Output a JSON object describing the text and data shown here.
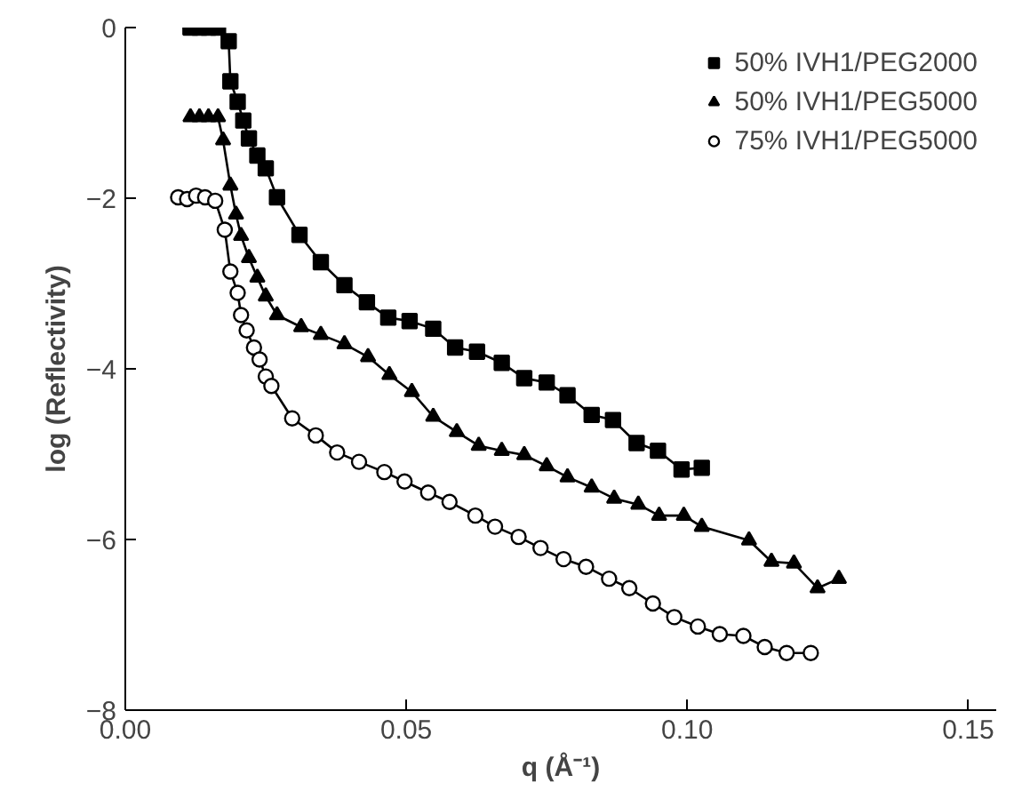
{
  "chart_data": {
    "type": "line",
    "xlabel": "q (Å⁻¹)",
    "ylabel": "log (Reflectivity)",
    "xlim": [
      0,
      0.155
    ],
    "ylim": [
      -8,
      0
    ],
    "xticks": [
      {
        "value": 0,
        "label": "0.00"
      },
      {
        "value": 0.05,
        "label": "0.05"
      },
      {
        "value": 0.1,
        "label": "0.10"
      },
      {
        "value": 0.15,
        "label": "0.15"
      }
    ],
    "yticks": [
      -8,
      -6,
      -4,
      -2,
      0
    ],
    "legend": "top right",
    "grid": false,
    "series": [
      {
        "name": "50% IVH1/PEG2000",
        "color": "#000000",
        "marker": "square",
        "x": [
          0.0116,
          0.0132,
          0.0148,
          0.0165,
          0.0184,
          0.0187,
          0.02,
          0.021,
          0.022,
          0.0235,
          0.025,
          0.027,
          0.031,
          0.0348,
          0.039,
          0.043,
          0.0468,
          0.0506,
          0.0548,
          0.0587,
          0.0626,
          0.067,
          0.071,
          0.075,
          0.0787,
          0.083,
          0.0868,
          0.091,
          0.0948,
          0.099,
          0.1026
        ],
        "values": [
          0,
          0,
          0,
          0,
          -0.16,
          -0.63,
          -0.87,
          -1.09,
          -1.3,
          -1.5,
          -1.65,
          -1.99,
          -2.43,
          -2.75,
          -3.02,
          -3.22,
          -3.4,
          -3.44,
          -3.53,
          -3.75,
          -3.8,
          -3.93,
          -4.11,
          -4.16,
          -4.31,
          -4.54,
          -4.6,
          -4.87,
          -4.96,
          -5.18,
          -5.16
        ]
      },
      {
        "name": "50% IVH1/PEG5000",
        "color": "#000000",
        "marker": "triangle",
        "x": [
          0.0116,
          0.0132,
          0.0148,
          0.0165,
          0.0174,
          0.0187,
          0.0197,
          0.0206,
          0.022,
          0.0235,
          0.025,
          0.027,
          0.0313,
          0.0348,
          0.039,
          0.0432,
          0.047,
          0.051,
          0.0548,
          0.059,
          0.0629,
          0.067,
          0.071,
          0.075,
          0.0787,
          0.083,
          0.087,
          0.0913,
          0.095,
          0.0994,
          0.1026,
          0.111,
          0.115,
          0.119,
          0.1232,
          0.127
        ],
        "values": [
          -1.05,
          -1.05,
          -1.05,
          -1.05,
          -1.32,
          -1.85,
          -2.19,
          -2.44,
          -2.7,
          -2.93,
          -3.15,
          -3.37,
          -3.51,
          -3.6,
          -3.71,
          -3.86,
          -4.07,
          -4.27,
          -4.56,
          -4.74,
          -4.9,
          -4.96,
          -5.01,
          -5.14,
          -5.27,
          -5.39,
          -5.52,
          -5.59,
          -5.72,
          -5.72,
          -5.85,
          -6.01,
          -6.26,
          -6.28,
          -6.57,
          -6.46
        ]
      },
      {
        "name": "75% IVH1/PEG5000",
        "color": "#000000",
        "marker": "circle",
        "x": [
          0.0094,
          0.011,
          0.0126,
          0.0142,
          0.016,
          0.0177,
          0.0187,
          0.02,
          0.0206,
          0.0216,
          0.0229,
          0.0239,
          0.025,
          0.026,
          0.0297,
          0.0339,
          0.0377,
          0.0416,
          0.0461,
          0.0497,
          0.0539,
          0.0577,
          0.0623,
          0.0658,
          0.07,
          0.0739,
          0.078,
          0.082,
          0.0861,
          0.0897,
          0.0939,
          0.0977,
          0.1019,
          0.1058,
          0.11,
          0.1138,
          0.1177,
          0.122
        ],
        "values": [
          -1.99,
          -2.01,
          -1.97,
          -1.99,
          -2.03,
          -2.37,
          -2.86,
          -3.11,
          -3.37,
          -3.55,
          -3.75,
          -3.89,
          -4.09,
          -4.2,
          -4.58,
          -4.78,
          -4.98,
          -5.09,
          -5.21,
          -5.32,
          -5.45,
          -5.56,
          -5.72,
          -5.85,
          -5.97,
          -6.1,
          -6.23,
          -6.32,
          -6.46,
          -6.57,
          -6.75,
          -6.91,
          -7.02,
          -7.11,
          -7.13,
          -7.26,
          -7.33,
          -7.33
        ]
      }
    ]
  }
}
